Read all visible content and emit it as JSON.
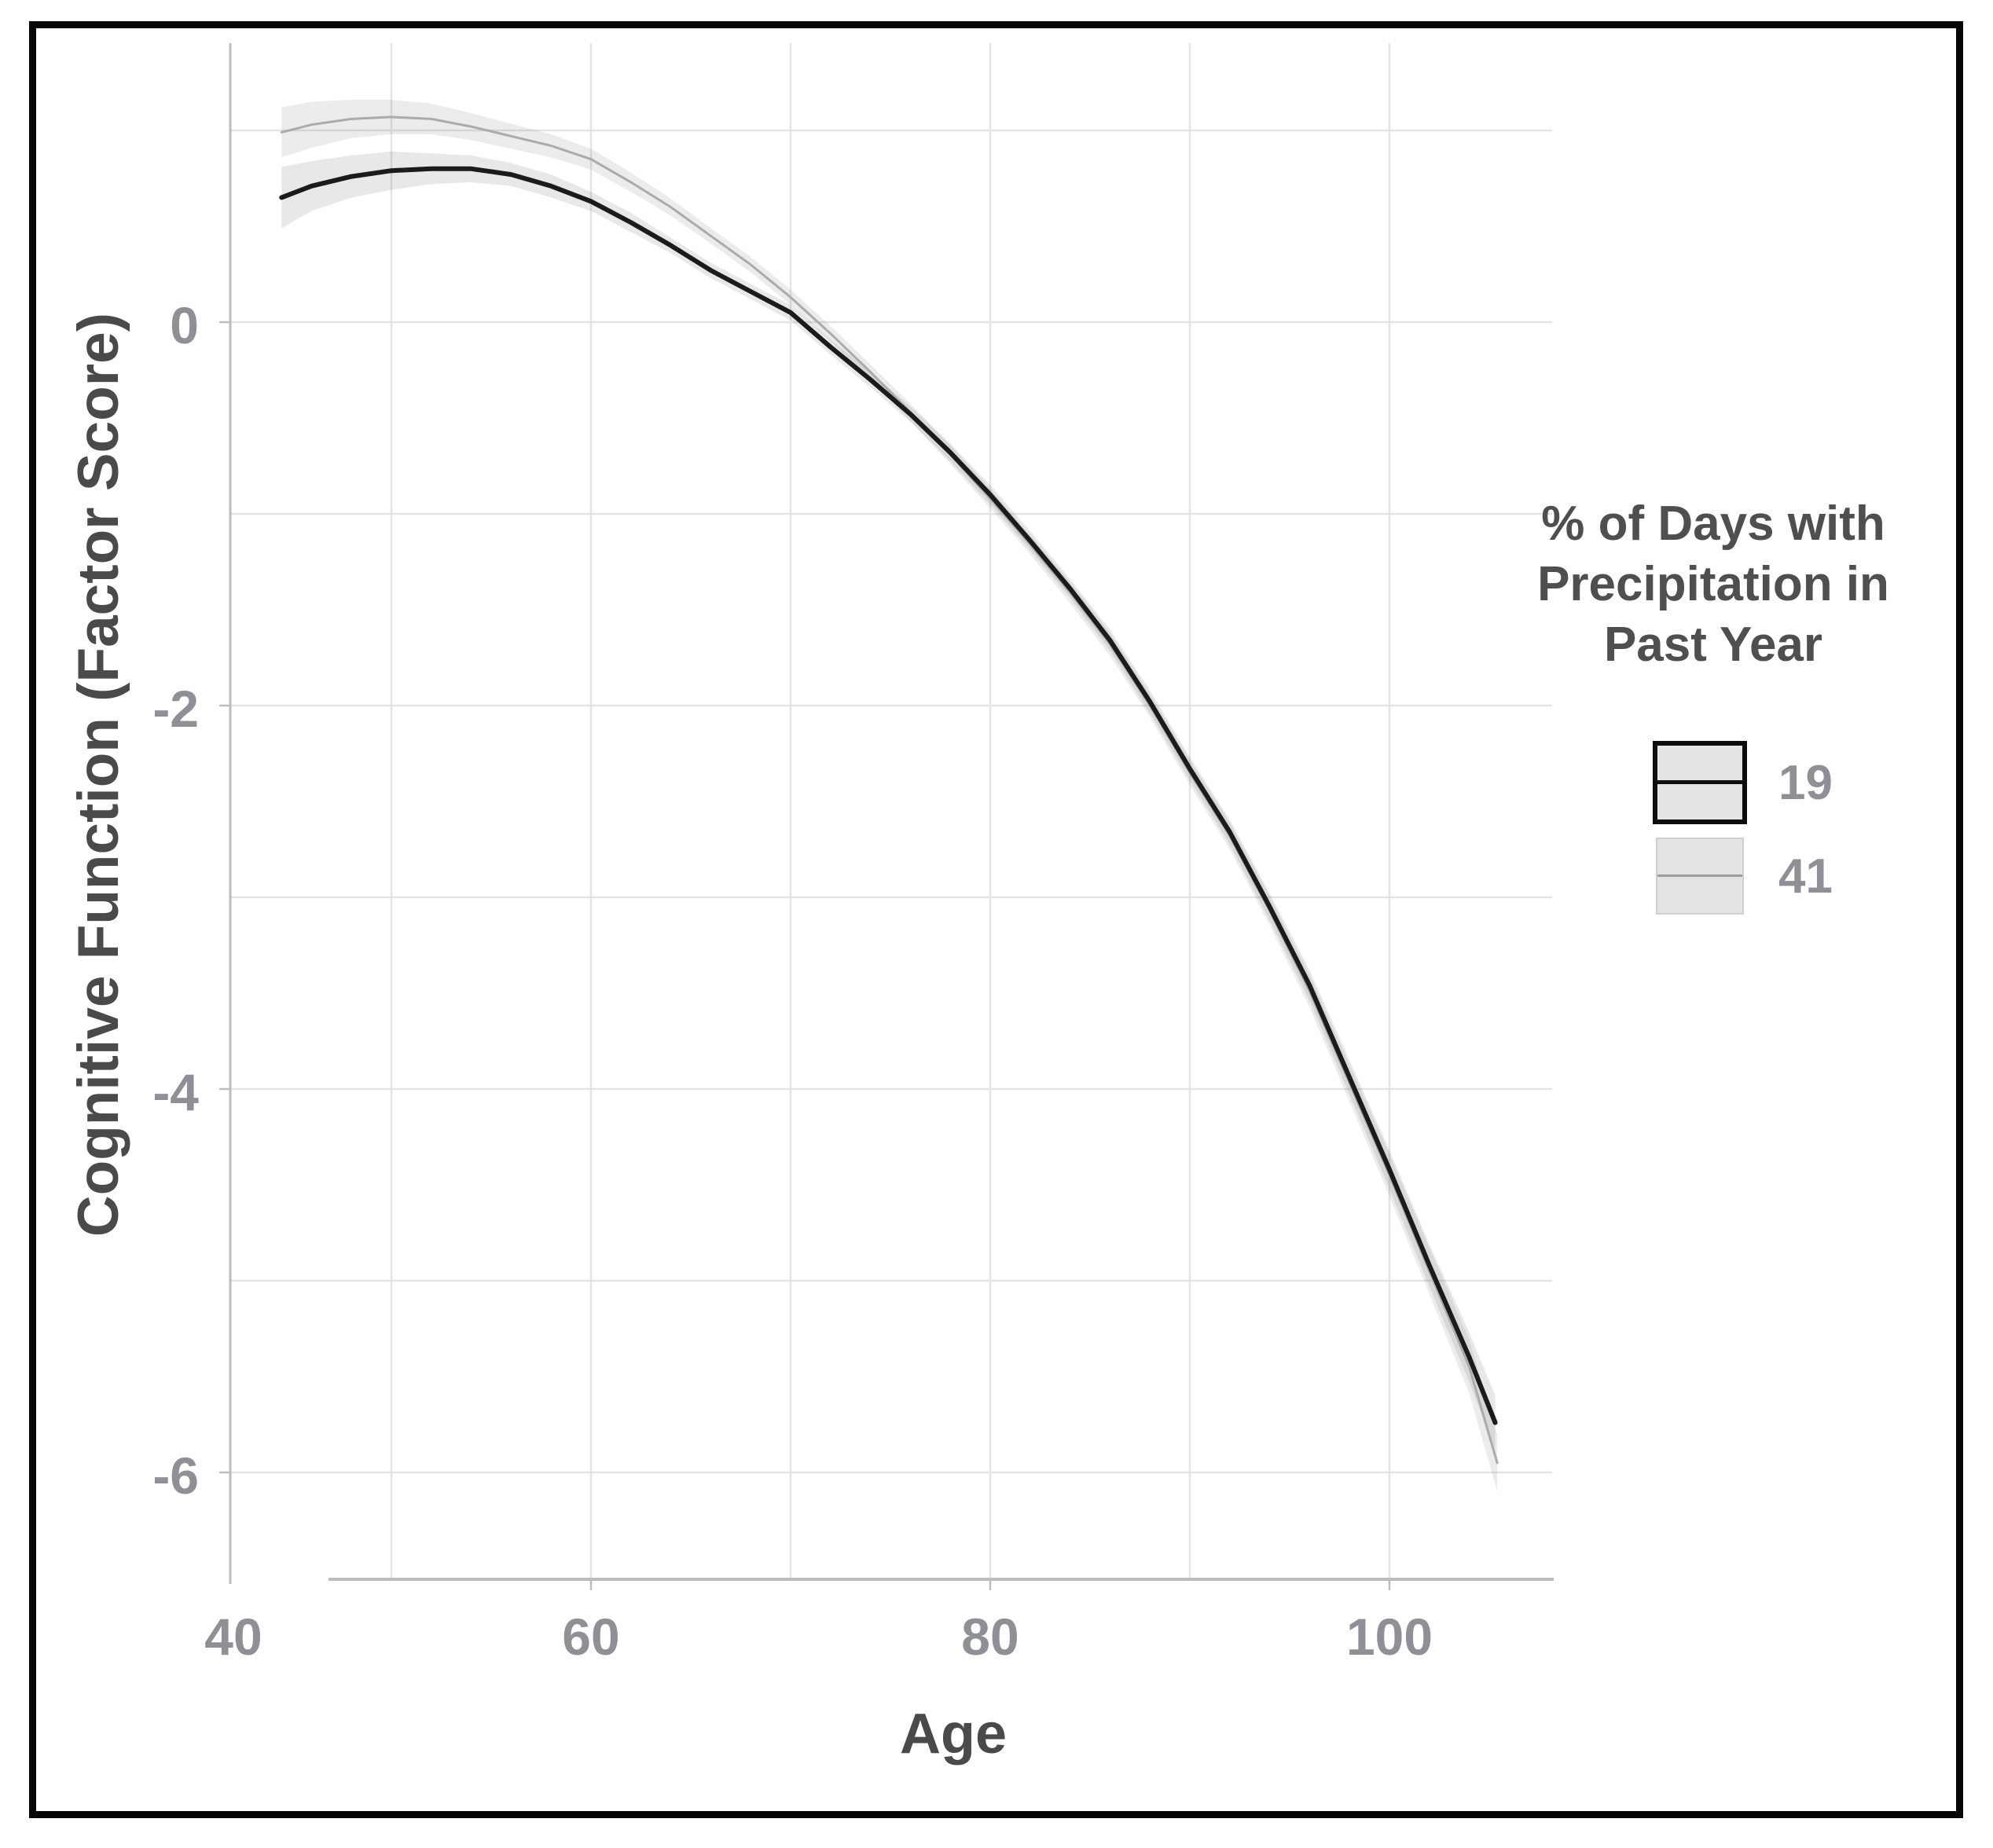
{
  "figure": {
    "border_color": "#060606",
    "background": "#ffffff"
  },
  "axes": {
    "x_title": "Age",
    "y_title": "Cognitive Function (Factor Score)",
    "tick_color": "#8f9096",
    "title_color": "#4a4a4a",
    "grid_color": "#e4e4e4",
    "spine_color": "#bdbdbd"
  },
  "legend": {
    "title_lines": [
      "% of Days with",
      "Precipitation in",
      "Past Year"
    ],
    "items": [
      {
        "label": "19",
        "style": "black-bordered box, gray fill, black center line"
      },
      {
        "label": "41",
        "style": "light gray box, thin gray center line"
      }
    ]
  },
  "chart_data": {
    "type": "line",
    "title": "",
    "xlabel": "Age",
    "ylabel": "Cognitive Function (Factor Score)",
    "xlim": [
      41.9,
      108.1
    ],
    "ylim": [
      -6.56,
      1.45
    ],
    "x_ticks": [
      40,
      60,
      80,
      100
    ],
    "y_ticks": [
      0,
      -2,
      -4,
      -6
    ],
    "x_gridlines": [
      50,
      60,
      70,
      80,
      90,
      100
    ],
    "y_gridlines": [
      1,
      0,
      -1,
      -2,
      -3,
      -4,
      -5,
      -6
    ],
    "grid": true,
    "legend_position": "right",
    "legend_title": "% of Days with Precipitation in Past Year",
    "series": [
      {
        "name": "41",
        "line_color": "#ababab",
        "line_width": 3,
        "band_color": "rgba(110,110,110,0.13)",
        "x": [
          44.5,
          46,
          48,
          50,
          52,
          54,
          56,
          58,
          60,
          62,
          64,
          66,
          68,
          70,
          72,
          74,
          76,
          78,
          80,
          82,
          84,
          86,
          88,
          90,
          92,
          94,
          96,
          98,
          100,
          102,
          104,
          105.4
        ],
        "y": [
          0.99,
          1.03,
          1.06,
          1.07,
          1.06,
          1.02,
          0.97,
          0.92,
          0.85,
          0.73,
          0.6,
          0.45,
          0.3,
          0.13,
          -0.06,
          -0.26,
          -0.47,
          -0.69,
          -0.92,
          -1.16,
          -1.41,
          -1.68,
          -2.0,
          -2.35,
          -2.68,
          -3.07,
          -3.49,
          -3.97,
          -4.45,
          -4.95,
          -5.45,
          -5.95
        ],
        "band_halfwidth": [
          0.13,
          0.12,
          0.1,
          0.09,
          0.08,
          0.07,
          0.065,
          0.06,
          0.055,
          0.05,
          0.045,
          0.04,
          0.04,
          0.04,
          0.04,
          0.04,
          0.045,
          0.05,
          0.05,
          0.05,
          0.055,
          0.06,
          0.06,
          0.065,
          0.07,
          0.075,
          0.085,
          0.095,
          0.11,
          0.12,
          0.14,
          0.15
        ]
      },
      {
        "name": "19",
        "line_color": "#1b1b1b",
        "line_width": 6,
        "band_color": "rgba(110,110,110,0.16)",
        "x": [
          44.5,
          46,
          48,
          50,
          52,
          54,
          56,
          58,
          60,
          62,
          64,
          66,
          68,
          70,
          72,
          74,
          76,
          78,
          80,
          82,
          84,
          86,
          88,
          90,
          92,
          94,
          96,
          98,
          100,
          102,
          104,
          105.3
        ],
        "y": [
          0.65,
          0.71,
          0.76,
          0.79,
          0.8,
          0.8,
          0.77,
          0.71,
          0.63,
          0.52,
          0.4,
          0.27,
          0.16,
          0.05,
          -0.13,
          -0.3,
          -0.48,
          -0.68,
          -0.9,
          -1.14,
          -1.39,
          -1.66,
          -1.98,
          -2.33,
          -2.66,
          -3.05,
          -3.46,
          -3.94,
          -4.42,
          -4.92,
          -5.4,
          -5.74
        ],
        "band_halfwidth": [
          0.16,
          0.13,
          0.11,
          0.1,
          0.08,
          0.07,
          0.06,
          0.06,
          0.05,
          0.05,
          0.04,
          0.04,
          0.04,
          0.04,
          0.04,
          0.04,
          0.04,
          0.045,
          0.05,
          0.05,
          0.05,
          0.055,
          0.06,
          0.06,
          0.065,
          0.07,
          0.08,
          0.09,
          0.1,
          0.11,
          0.13,
          0.14
        ]
      }
    ]
  }
}
